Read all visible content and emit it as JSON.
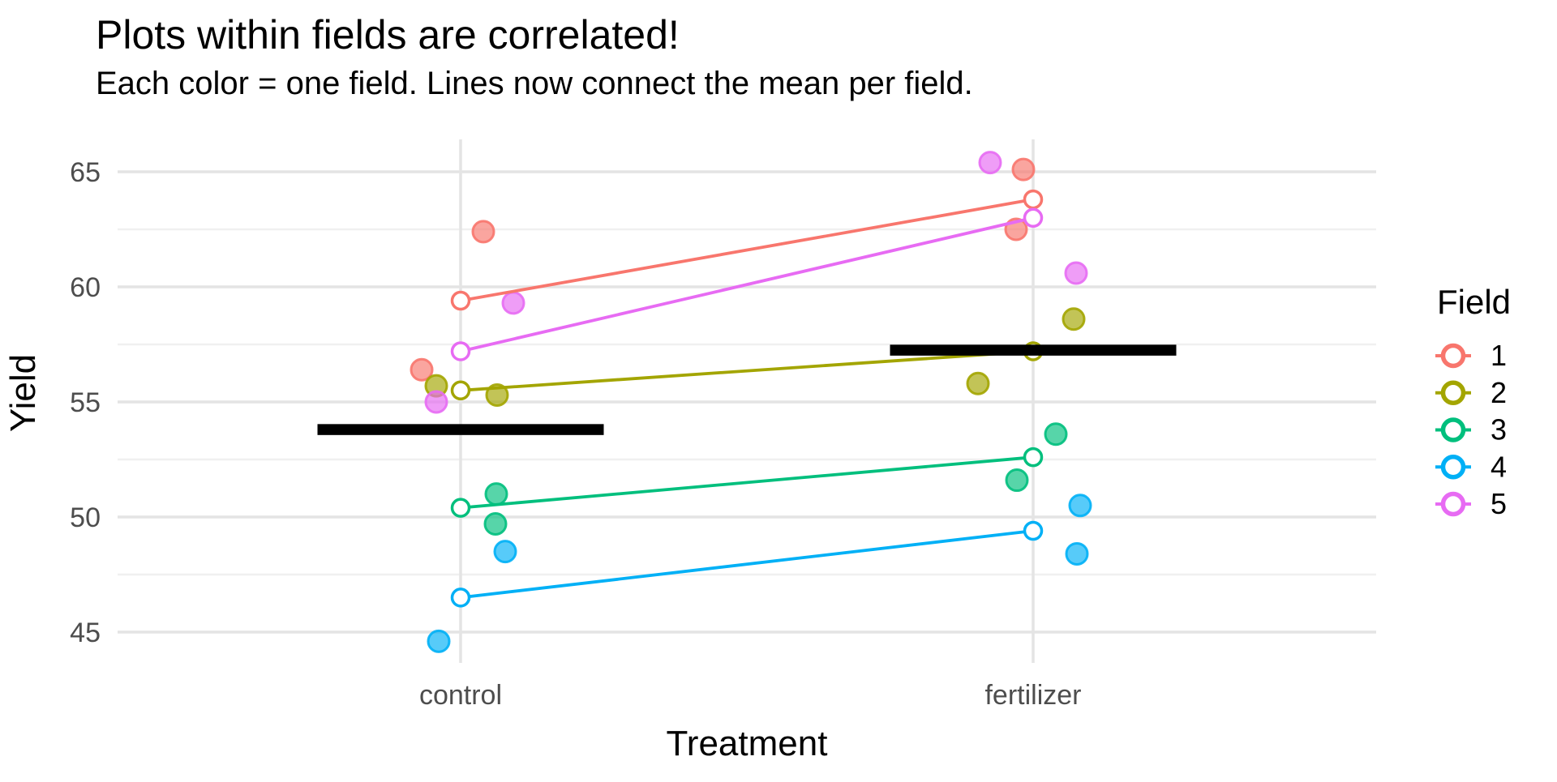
{
  "chart_data": {
    "type": "scatter",
    "title": "Plots within fields are correlated!",
    "subtitle": "Each color = one field. Lines now connect the mean per field.",
    "xlabel": "Treatment",
    "ylabel": "Yield",
    "categories": [
      "control",
      "fertilizer"
    ],
    "y_ticks": [
      65,
      60,
      55,
      50,
      45
    ],
    "y_minor_ticks": [
      62.5,
      57.5,
      52.5,
      47.5
    ],
    "ylim": [
      43.7,
      66.4
    ],
    "grid": true,
    "legend_position": "right",
    "legend_title": "Field",
    "point_alpha": 0.66,
    "fields": [
      {
        "label": "1",
        "color": "#F8766D",
        "points": [
          {
            "treatment": "control",
            "yield": 62.4,
            "dx": 28
          },
          {
            "treatment": "control",
            "yield": 56.4,
            "dx": -48
          },
          {
            "treatment": "fertilizer",
            "yield": 65.1,
            "dx": -12
          },
          {
            "treatment": "fertilizer",
            "yield": 62.5,
            "dx": -21
          }
        ],
        "mean_control": 59.4,
        "mean_fertilizer": 63.8
      },
      {
        "label": "2",
        "color": "#A3A500",
        "points": [
          {
            "treatment": "control",
            "yield": 55.7,
            "dx": -30
          },
          {
            "treatment": "control",
            "yield": 55.3,
            "dx": 45
          },
          {
            "treatment": "fertilizer",
            "yield": 58.6,
            "dx": 50
          },
          {
            "treatment": "fertilizer",
            "yield": 55.8,
            "dx": -68
          }
        ],
        "mean_control": 55.5,
        "mean_fertilizer": 57.2
      },
      {
        "label": "3",
        "color": "#00BF7D",
        "points": [
          {
            "treatment": "control",
            "yield": 51.0,
            "dx": 44
          },
          {
            "treatment": "control",
            "yield": 49.7,
            "dx": 43
          },
          {
            "treatment": "fertilizer",
            "yield": 53.6,
            "dx": 28
          },
          {
            "treatment": "fertilizer",
            "yield": 51.6,
            "dx": -20
          }
        ],
        "mean_control": 50.4,
        "mean_fertilizer": 52.6
      },
      {
        "label": "4",
        "color": "#00B0F6",
        "points": [
          {
            "treatment": "control",
            "yield": 48.5,
            "dx": 55
          },
          {
            "treatment": "control",
            "yield": 44.6,
            "dx": -27
          },
          {
            "treatment": "fertilizer",
            "yield": 50.5,
            "dx": 58
          },
          {
            "treatment": "fertilizer",
            "yield": 48.4,
            "dx": 54
          }
        ],
        "mean_control": 46.5,
        "mean_fertilizer": 49.4
      },
      {
        "label": "5",
        "color": "#E76BF3",
        "points": [
          {
            "treatment": "control",
            "yield": 59.3,
            "dx": 65
          },
          {
            "treatment": "control",
            "yield": 55.0,
            "dx": -30
          },
          {
            "treatment": "fertilizer",
            "yield": 65.4,
            "dx": -53
          },
          {
            "treatment": "fertilizer",
            "yield": 60.6,
            "dx": 53
          }
        ],
        "mean_control": 57.2,
        "mean_fertilizer": 63.0
      }
    ],
    "treatment_means": [
      {
        "treatment": "control",
        "mean": 53.8
      },
      {
        "treatment": "fertilizer",
        "mean": 57.25
      }
    ],
    "colors": {
      "tick_label": "#4d4d4d",
      "text": "#000000",
      "grid_major": "#e4e4e4",
      "grid_minor": "#f0f0f0",
      "mean_bar": "#000000"
    }
  }
}
